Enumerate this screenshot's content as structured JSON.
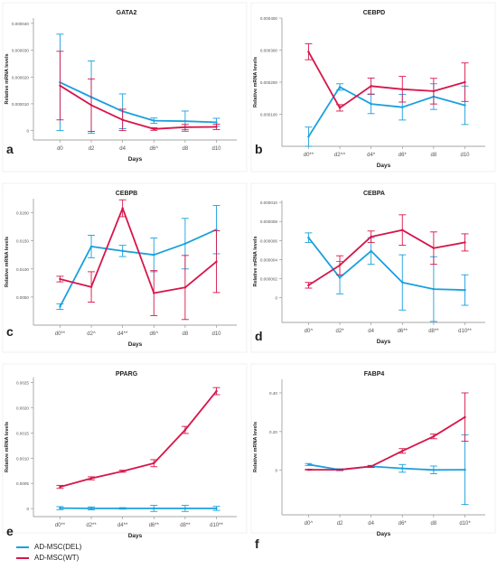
{
  "colors": {
    "del": "#1aa0dd",
    "wt": "#d6164a",
    "axis": "#888888",
    "text": "#222222"
  },
  "legend": [
    {
      "label": "AD-MSC(DEL)",
      "color": "#1aa0dd"
    },
    {
      "label": "AD-MSC(WT)",
      "color": "#d6164a"
    }
  ],
  "chart_data": [
    {
      "panel_label": "a",
      "title": "GATA2",
      "type": "line",
      "xlabel": "Days",
      "ylabel": "Relative mRNA levels",
      "categories": [
        "d0",
        "d2",
        "d4",
        "d6^",
        "d8",
        "d10"
      ],
      "ylim": [
        -3.5e-06,
        4.2e-05
      ],
      "yticks": [
        0,
        1e-05,
        2e-05,
        3e-05,
        4e-05
      ],
      "ytick_labels": [
        "0",
        "0.000010",
        "0.000020",
        "0.000030",
        "0.000040"
      ],
      "series": [
        {
          "name": "AD-MSC(DEL)",
          "color": "#1aa0dd",
          "values": [
            1.8e-05,
            1.25e-05,
            7.2e-06,
            3.7e-06,
            3.5e-06,
            3.1e-06
          ],
          "err": [
            1.8e-05,
            1.35e-05,
            6.5e-06,
            1e-06,
            3.8e-06,
            1.5e-06
          ]
        },
        {
          "name": "AD-MSC(WT)",
          "color": "#d6164a",
          "values": [
            1.68e-05,
            9.5e-06,
            4e-06,
            6e-07,
            1.3e-06,
            1.4e-06
          ],
          "err": [
            1.28e-05,
            9.8e-06,
            4e-06,
            5e-07,
            1e-06,
            1e-06
          ]
        }
      ]
    },
    {
      "panel_label": "b",
      "title": "CEBPD",
      "type": "line",
      "xlabel": "Days",
      "ylabel": "Relative mRNA levels",
      "categories": [
        "d0**",
        "d2^^",
        "d4*",
        "d6*",
        "d8",
        "d10"
      ],
      "ylim": [
        0,
        0.0004
      ],
      "yticks": [
        0.0001,
        0.0002,
        0.0003,
        0.0004
      ],
      "ytick_labels": [
        "0.000100",
        "0.000200",
        "0.000300",
        "0.000400"
      ],
      "series": [
        {
          "name": "AD-MSC(DEL)",
          "color": "#1aa0dd",
          "values": [
            3e-05,
            0.000185,
            0.000132,
            0.000122,
            0.000155,
            0.000128
          ],
          "err": [
            3e-05,
            1e-05,
            3e-05,
            4e-05,
            4e-05,
            6e-05
          ]
        },
        {
          "name": "AD-MSC(WT)",
          "color": "#d6164a",
          "values": [
            0.000295,
            0.00012,
            0.000188,
            0.000178,
            0.000172,
            0.0002
          ],
          "err": [
            2.5e-05,
            1e-05,
            2.5e-05,
            4e-05,
            4e-05,
            6e-05
          ]
        }
      ]
    },
    {
      "panel_label": "c",
      "title": "CEBPB",
      "type": "line",
      "xlabel": "Days",
      "ylabel": "Relative mRNA levels",
      "categories": [
        "d0**",
        "d2^",
        "d4**",
        "d6^",
        "d8",
        "d10"
      ],
      "ylim": [
        0,
        0.0225
      ],
      "yticks": [
        0.005,
        0.01,
        0.015,
        0.02
      ],
      "ytick_labels": [
        "0.0050",
        "0.0100",
        "0.0150",
        "0.0200"
      ],
      "series": [
        {
          "name": "AD-MSC(DEL)",
          "color": "#1aa0dd",
          "values": [
            0.0033,
            0.014,
            0.0132,
            0.0125,
            0.0145,
            0.017
          ],
          "err": [
            0.0005,
            0.002,
            0.001,
            0.003,
            0.0045,
            0.0043
          ]
        },
        {
          "name": "AD-MSC(WT)",
          "color": "#d6164a",
          "values": [
            0.0082,
            0.0068,
            0.0208,
            0.0057,
            0.0067,
            0.0113
          ],
          "err": [
            0.0005,
            0.0027,
            0.0015,
            0.004,
            0.0057,
            0.0055
          ]
        }
      ]
    },
    {
      "panel_label": "d",
      "title": "CEBPA",
      "type": "line",
      "xlabel": "Days",
      "ylabel": "Relative mRNA levels",
      "categories": [
        "d0^",
        "d2*",
        "d4",
        "d6**",
        "d8**",
        "d10**"
      ],
      "ylim": [
        -2.6e-06,
        1.02e-05
      ],
      "yticks": [
        0,
        2e-06,
        4e-06,
        6e-06,
        8e-06,
        1e-05
      ],
      "ytick_labels": [
        "0",
        "0.000002",
        "0.000004",
        "0.000006",
        "0.000008",
        "0.000010"
      ],
      "series": [
        {
          "name": "AD-MSC(DEL)",
          "color": "#1aa0dd",
          "values": [
            6.3e-06,
            2.1e-06,
            4.9e-06,
            1.6e-06,
            9e-07,
            8e-07
          ],
          "err": [
            5e-07,
            1.7e-06,
            1.4e-06,
            2.9e-06,
            3.4e-06,
            1.6e-06
          ]
        },
        {
          "name": "AD-MSC(WT)",
          "color": "#d6164a",
          "values": [
            1.3e-06,
            3.4e-06,
            6.4e-06,
            7.1e-06,
            5.2e-06,
            5.8e-06
          ],
          "err": [
            3e-07,
            1e-06,
            6e-07,
            1.6e-06,
            1.7e-06,
            9e-07
          ]
        }
      ]
    },
    {
      "panel_label": "e",
      "title": "PPARG",
      "type": "line",
      "xlabel": "Days",
      "ylabel": "Relative mRNA levels",
      "categories": [
        "d0**",
        "d2**",
        "d4**",
        "d6**",
        "d8**",
        "d10**"
      ],
      "ylim": [
        -0.00016,
        0.0026
      ],
      "yticks": [
        0,
        0.0005,
        0.001,
        0.0015,
        0.002,
        0.0025
      ],
      "ytick_labels": [
        "0",
        "0.0005",
        "0.0010",
        "0.0015",
        "0.0020",
        "0.0025"
      ],
      "series": [
        {
          "name": "AD-MSC(DEL)",
          "color": "#1aa0dd",
          "values": [
            8e-06,
            3e-06,
            3e-06,
            3e-06,
            3e-06,
            3e-06
          ],
          "err": [
            3e-05,
            3e-05,
            1.5e-05,
            6e-05,
            6e-05,
            4e-05
          ]
        },
        {
          "name": "AD-MSC(WT)",
          "color": "#d6164a",
          "values": [
            0.00043,
            0.0006,
            0.00074,
            0.0009,
            0.00156,
            0.00233
          ],
          "err": [
            3e-05,
            3e-05,
            2e-05,
            7e-05,
            7e-05,
            7e-05
          ]
        }
      ]
    },
    {
      "panel_label": "f",
      "title": "FABP4",
      "type": "line",
      "xlabel": "Days",
      "ylabel": "Relative mRNA levels",
      "categories": [
        "d0^",
        "d2",
        "d4",
        "d6*",
        "d8",
        "d10*"
      ],
      "ylim": [
        -0.23,
        0.47
      ],
      "yticks": [
        0,
        0.2,
        0.4
      ],
      "ytick_labels": [
        "0",
        "0.20",
        "0.40"
      ],
      "series": [
        {
          "name": "AD-MSC(DEL)",
          "color": "#1aa0dd",
          "values": [
            0.03,
            0.003,
            0.02,
            0.01,
            0.002,
            0.003
          ],
          "err": [
            0.005,
            0.005,
            0.005,
            0.02,
            0.02,
            0.18
          ]
        },
        {
          "name": "AD-MSC(WT)",
          "color": "#d6164a",
          "values": [
            0.003,
            0.003,
            0.02,
            0.1,
            0.175,
            0.275
          ],
          "err": [
            0.003,
            0.003,
            0.005,
            0.012,
            0.012,
            0.125
          ]
        }
      ]
    }
  ]
}
